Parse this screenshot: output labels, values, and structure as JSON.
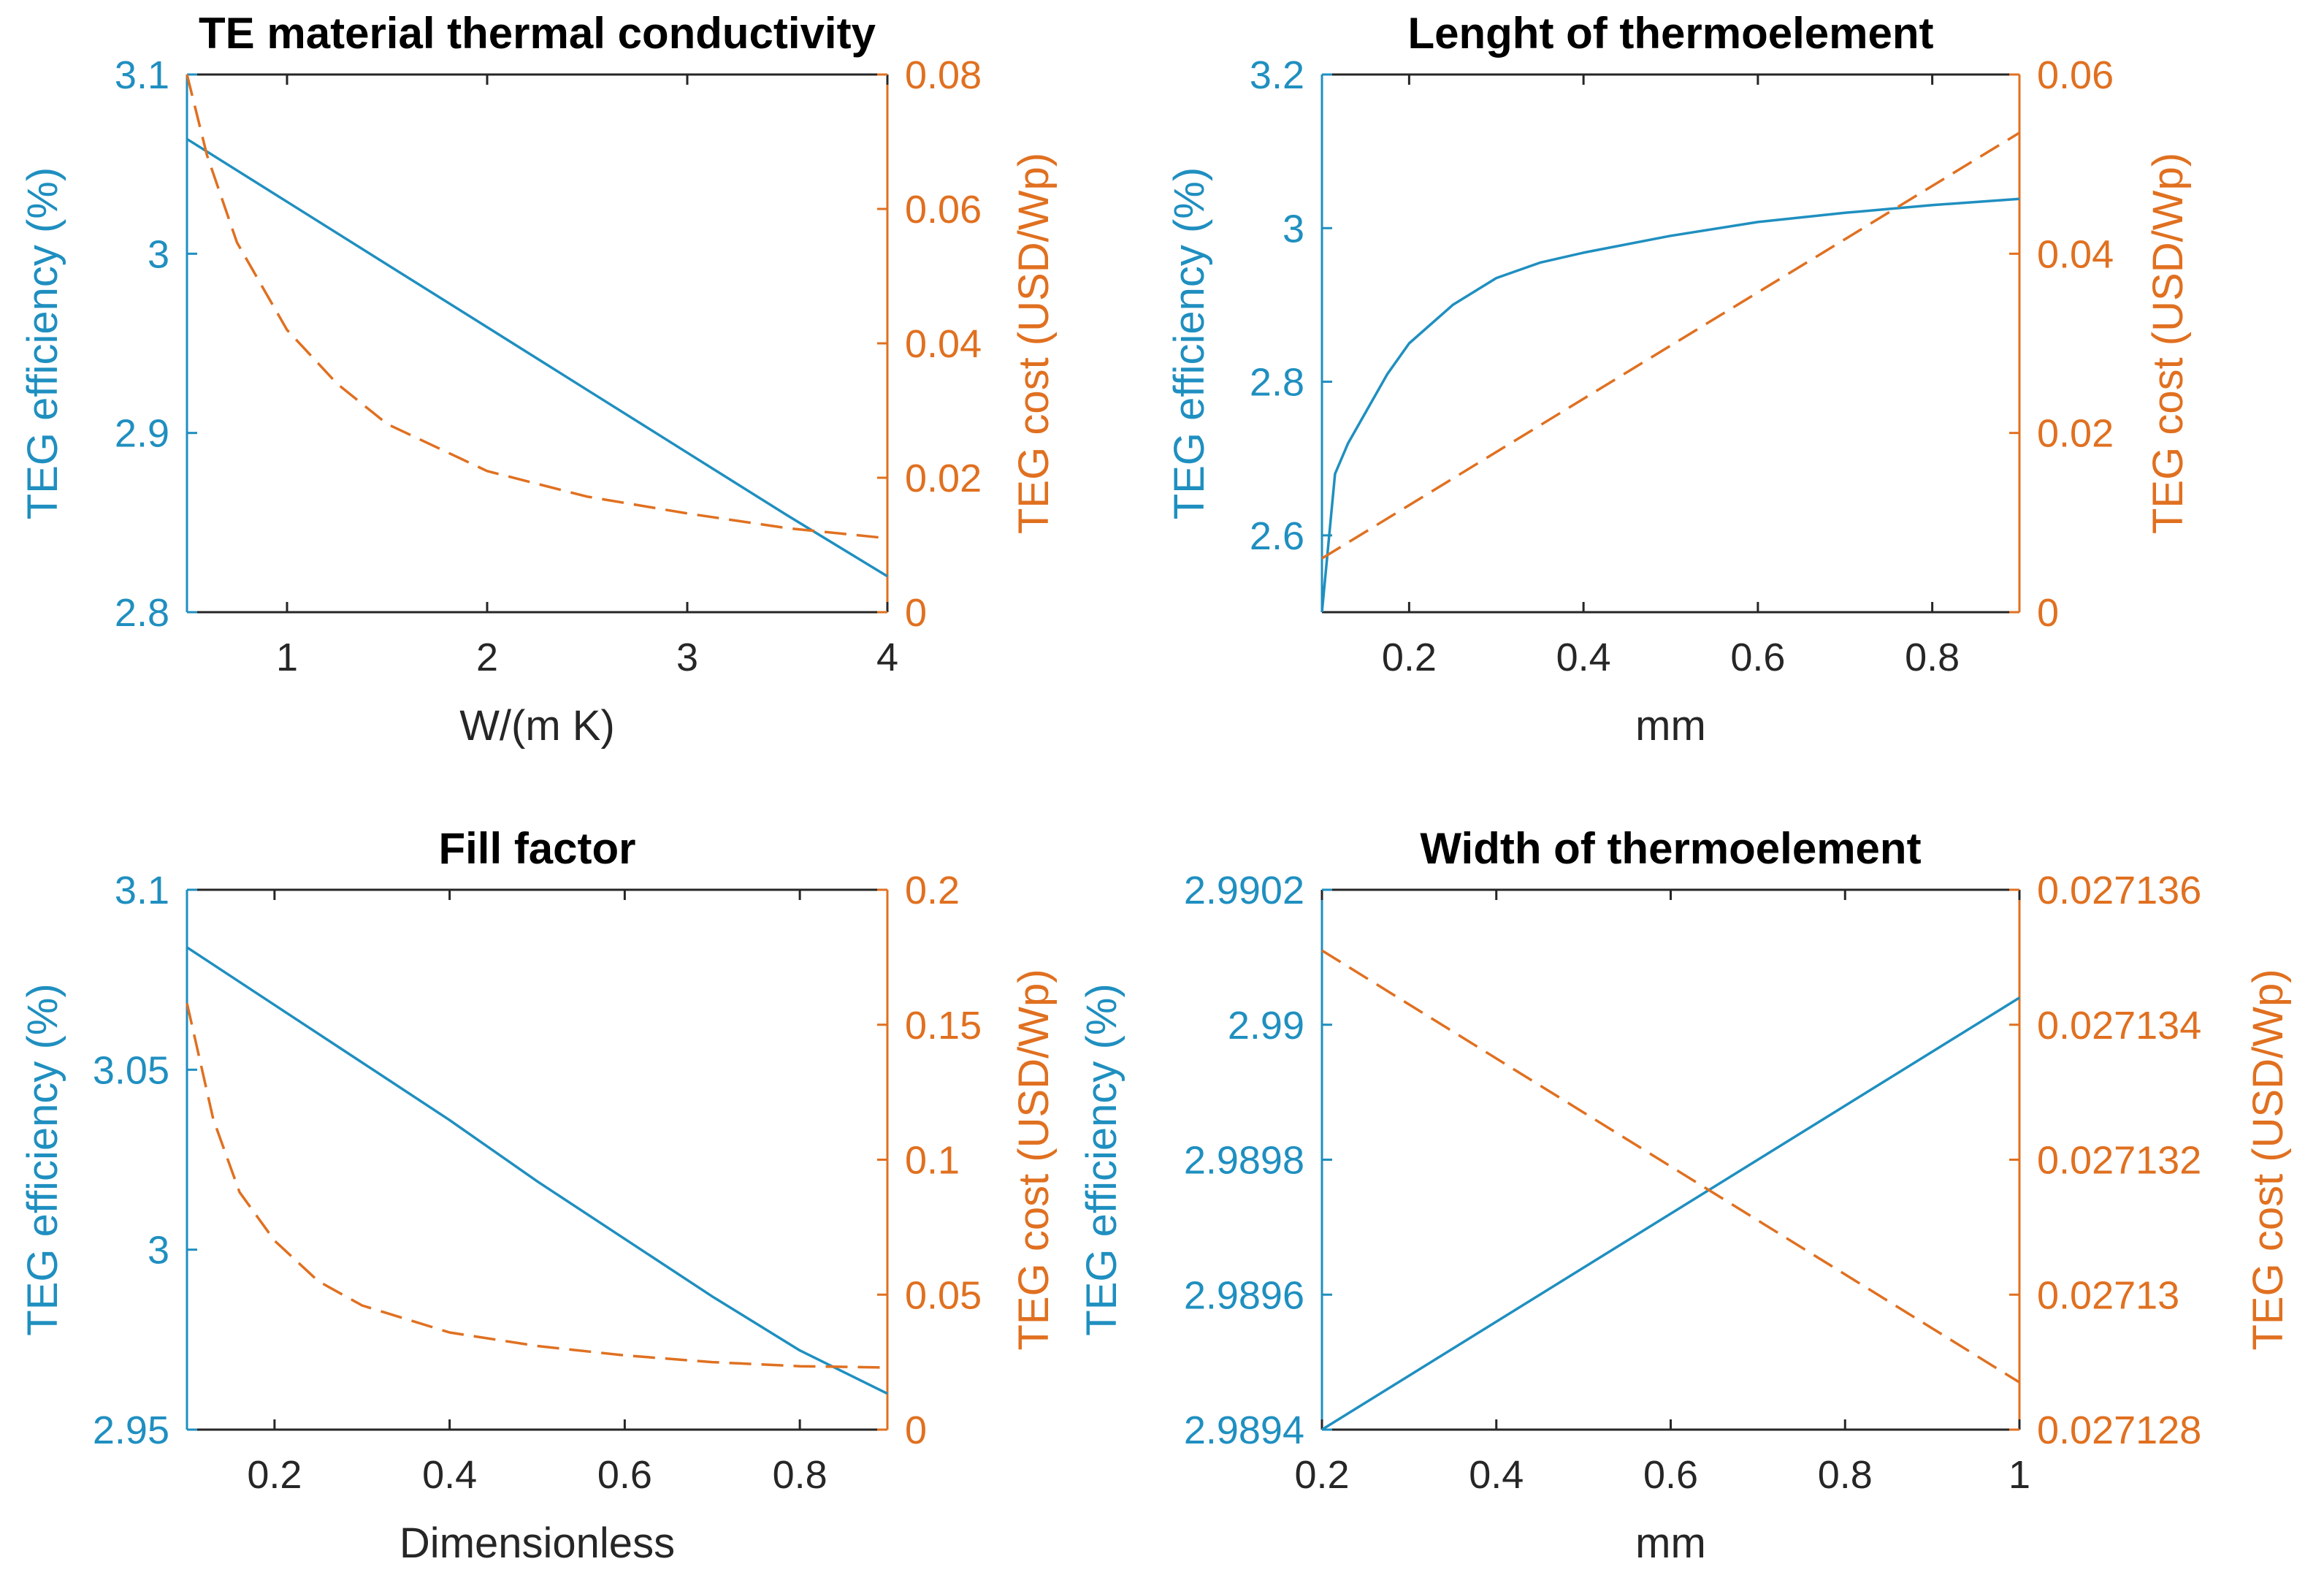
{
  "colors": {
    "left_axis": "#1f8fc0",
    "right_axis": "#e07020",
    "x_axis": "#262626",
    "title": "#000000"
  },
  "chart_data": [
    {
      "type": "line",
      "title": "TE material thermal conductivity",
      "xlabel": "W/(m K)",
      "ylabel_left": "TEG efficiency (%)",
      "ylabel_right": "TEG cost (USD/Wp)",
      "xlim": [
        0.5,
        4
      ],
      "ylim_left": [
        2.8,
        3.1
      ],
      "ylim_right": [
        0,
        0.08
      ],
      "xticks": [
        {
          "v": 1,
          "label": "1"
        },
        {
          "v": 2,
          "label": "2"
        },
        {
          "v": 3,
          "label": "3"
        },
        {
          "v": 4,
          "label": "4"
        }
      ],
      "yticks_left": [
        {
          "v": 2.8,
          "label": "2.8"
        },
        {
          "v": 2.9,
          "label": "2.9"
        },
        {
          "v": 3.0,
          "label": "3"
        },
        {
          "v": 3.1,
          "label": "3.1"
        }
      ],
      "yticks_right": [
        {
          "v": 0,
          "label": "0"
        },
        {
          "v": 0.02,
          "label": "0.02"
        },
        {
          "v": 0.04,
          "label": "0.04"
        },
        {
          "v": 0.06,
          "label": "0.06"
        },
        {
          "v": 0.08,
          "label": "0.08"
        }
      ],
      "series": [
        {
          "name": "TEG efficiency",
          "axis": "left",
          "style": "solid",
          "x": [
            0.5,
            1,
            1.5,
            2,
            2.5,
            3,
            3.5,
            4
          ],
          "y": [
            3.064,
            3.029,
            2.994,
            2.959,
            2.924,
            2.889,
            2.854,
            2.82
          ]
        },
        {
          "name": "TEG cost",
          "axis": "right",
          "style": "dashed",
          "x": [
            0.5,
            0.6,
            0.75,
            1,
            1.25,
            1.5,
            1.75,
            2,
            2.5,
            3,
            3.5,
            4
          ],
          "y": [
            0.08,
            0.068,
            0.055,
            0.042,
            0.034,
            0.028,
            0.0245,
            0.021,
            0.0172,
            0.0147,
            0.0125,
            0.011
          ]
        }
      ]
    },
    {
      "type": "line",
      "title": "Lenght of thermoelement",
      "xlabel": "mm",
      "ylabel_left": "TEG efficiency (%)",
      "ylabel_right": "TEG cost (USD/Wp)",
      "xlim": [
        0.1,
        0.9
      ],
      "ylim_left": [
        2.5,
        3.2
      ],
      "ylim_right": [
        0,
        0.06
      ],
      "xticks": [
        {
          "v": 0.2,
          "label": "0.2"
        },
        {
          "v": 0.4,
          "label": "0.4"
        },
        {
          "v": 0.6,
          "label": "0.6"
        },
        {
          "v": 0.8,
          "label": "0.8"
        }
      ],
      "yticks_left": [
        {
          "v": 2.6,
          "label": "2.6"
        },
        {
          "v": 2.8,
          "label": "2.8"
        },
        {
          "v": 3.0,
          "label": "3"
        },
        {
          "v": 3.2,
          "label": "3.2"
        }
      ],
      "yticks_right": [
        {
          "v": 0,
          "label": "0"
        },
        {
          "v": 0.02,
          "label": "0.02"
        },
        {
          "v": 0.04,
          "label": "0.04"
        },
        {
          "v": 0.06,
          "label": "0.06"
        }
      ],
      "series": [
        {
          "name": "TEG efficiency",
          "axis": "left",
          "style": "solid",
          "x": [
            0.1,
            0.115,
            0.13,
            0.15,
            0.175,
            0.2,
            0.25,
            0.3,
            0.35,
            0.4,
            0.5,
            0.6,
            0.7,
            0.8,
            0.9
          ],
          "y": [
            2.5,
            2.68,
            2.72,
            2.76,
            2.81,
            2.85,
            2.9,
            2.935,
            2.955,
            2.968,
            2.99,
            3.008,
            3.02,
            3.03,
            3.038
          ]
        },
        {
          "name": "TEG cost",
          "axis": "right",
          "style": "dashed",
          "x": [
            0.1,
            0.9
          ],
          "y": [
            0.006,
            0.0535
          ]
        }
      ]
    },
    {
      "type": "line",
      "title": "Fill factor",
      "xlabel": "Dimensionless",
      "ylabel_left": "TEG efficiency (%)",
      "ylabel_right": "TEG cost (USD/Wp)",
      "xlim": [
        0.1,
        0.9
      ],
      "ylim_left": [
        2.95,
        3.1
      ],
      "ylim_right": [
        0,
        0.2
      ],
      "xticks": [
        {
          "v": 0.2,
          "label": "0.2"
        },
        {
          "v": 0.4,
          "label": "0.4"
        },
        {
          "v": 0.6,
          "label": "0.6"
        },
        {
          "v": 0.8,
          "label": "0.8"
        }
      ],
      "yticks_left": [
        {
          "v": 2.95,
          "label": "2.95"
        },
        {
          "v": 3.0,
          "label": "3"
        },
        {
          "v": 3.05,
          "label": "3.05"
        },
        {
          "v": 3.1,
          "label": "3.1"
        }
      ],
      "yticks_right": [
        {
          "v": 0,
          "label": "0"
        },
        {
          "v": 0.05,
          "label": "0.05"
        },
        {
          "v": 0.1,
          "label": "0.1"
        },
        {
          "v": 0.15,
          "label": "0.15"
        },
        {
          "v": 0.2,
          "label": "0.2"
        }
      ],
      "series": [
        {
          "name": "TEG efficiency",
          "axis": "left",
          "style": "solid",
          "x": [
            0.1,
            0.2,
            0.3,
            0.4,
            0.5,
            0.6,
            0.7,
            0.8,
            0.9
          ],
          "y": [
            3.084,
            3.068,
            3.052,
            3.036,
            3.019,
            3.003,
            2.987,
            2.972,
            2.96
          ]
        },
        {
          "name": "TEG cost",
          "axis": "right",
          "style": "dashed",
          "x": [
            0.1,
            0.13,
            0.16,
            0.2,
            0.25,
            0.3,
            0.4,
            0.5,
            0.6,
            0.7,
            0.8,
            0.9
          ],
          "y": [
            0.158,
            0.115,
            0.088,
            0.07,
            0.055,
            0.046,
            0.036,
            0.031,
            0.0275,
            0.025,
            0.0235,
            0.023
          ]
        }
      ]
    },
    {
      "type": "line",
      "title": "Width of thermoelement",
      "xlabel": "mm",
      "ylabel_left": "TEG efficiency (%)",
      "ylabel_right": "TEG cost (USD/Wp)",
      "xlim": [
        0.2,
        1
      ],
      "ylim_left": [
        2.9894,
        2.9902
      ],
      "ylim_right": [
        0.027128,
        0.027136
      ],
      "xticks": [
        {
          "v": 0.2,
          "label": "0.2"
        },
        {
          "v": 0.4,
          "label": "0.4"
        },
        {
          "v": 0.6,
          "label": "0.6"
        },
        {
          "v": 0.8,
          "label": "0.8"
        },
        {
          "v": 1.0,
          "label": "1"
        }
      ],
      "yticks_left": [
        {
          "v": 2.9894,
          "label": "2.9894"
        },
        {
          "v": 2.9896,
          "label": "2.9896"
        },
        {
          "v": 2.9898,
          "label": "2.9898"
        },
        {
          "v": 2.99,
          "label": "2.99"
        },
        {
          "v": 2.9902,
          "label": "2.9902"
        }
      ],
      "yticks_right": [
        {
          "v": 0.027128,
          "label": "0.027128"
        },
        {
          "v": 0.02713,
          "label": "0.02713"
        },
        {
          "v": 0.027132,
          "label": "0.027132"
        },
        {
          "v": 0.027134,
          "label": "0.027134"
        },
        {
          "v": 0.027136,
          "label": "0.027136"
        }
      ],
      "series": [
        {
          "name": "TEG efficiency",
          "axis": "left",
          "style": "solid",
          "x": [
            0.2,
            1.0
          ],
          "y": [
            2.9894,
            2.99004
          ]
        },
        {
          "name": "TEG cost",
          "axis": "right",
          "style": "dashed",
          "x": [
            0.2,
            1.0
          ],
          "y": [
            0.0271351,
            0.0271287
          ]
        }
      ]
    }
  ]
}
